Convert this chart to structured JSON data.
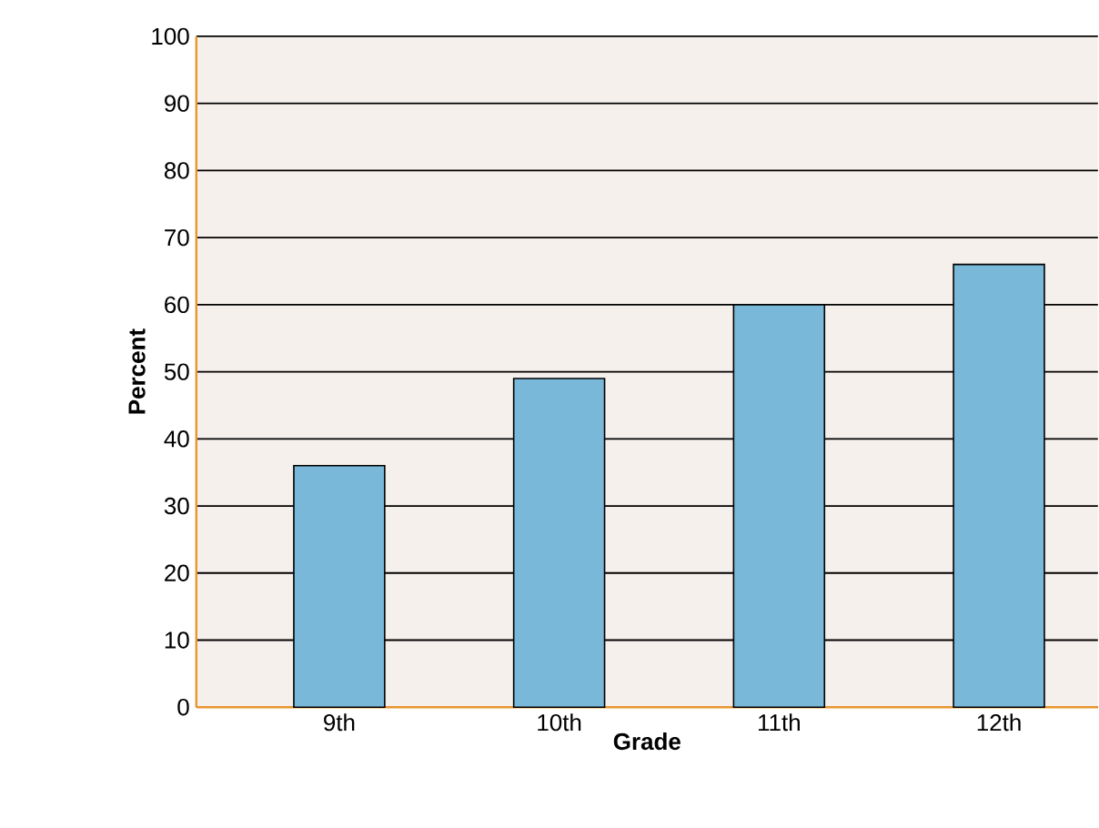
{
  "chart_data": {
    "type": "bar",
    "xlabel": "Grade",
    "ylabel": "Percent",
    "categories": [
      "9th",
      "10th",
      "11th",
      "12th"
    ],
    "values": [
      36,
      49,
      60,
      66
    ],
    "color": "#7ab8d9",
    "ylim": [
      0,
      100
    ],
    "yticks": [
      0,
      10,
      20,
      30,
      40,
      50,
      60,
      70,
      80,
      90,
      100
    ],
    "grid": "y"
  }
}
